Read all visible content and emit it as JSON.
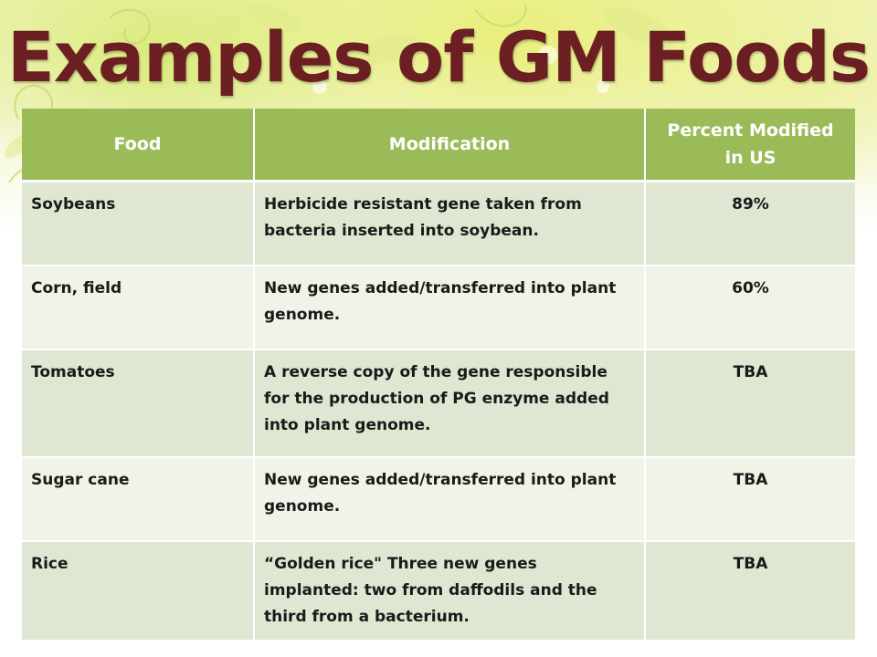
{
  "slide": {
    "title": "Examples of GM Foods"
  },
  "table": {
    "headers": {
      "food": "Food",
      "modification": "Modification",
      "percent": "Percent Modified in US"
    },
    "rows": [
      {
        "food": "Soybeans",
        "modification": "Herbicide resistant gene taken from bacteria inserted into soybean.",
        "percent": "89%"
      },
      {
        "food": "Corn, field",
        "modification": "New genes added/transferred into plant genome.",
        "percent": "60%"
      },
      {
        "food": "Tomatoes",
        "modification": "A reverse copy of the gene responsible for the production of PG enzyme added into plant genome.",
        "percent": "TBA"
      },
      {
        "food": "Sugar cane",
        "modification": "New genes added/transferred into plant genome.",
        "percent": "TBA"
      },
      {
        "food": "Rice",
        "modification": "“Golden rice\" Three new genes implanted: two from daffodils and the third from a bacterium.",
        "percent": "TBA"
      }
    ]
  },
  "colors": {
    "title": "#6b1f22",
    "header_bg": "#9bbb59",
    "row_dark": "#dfe7d2",
    "row_light": "#eff3e8"
  }
}
